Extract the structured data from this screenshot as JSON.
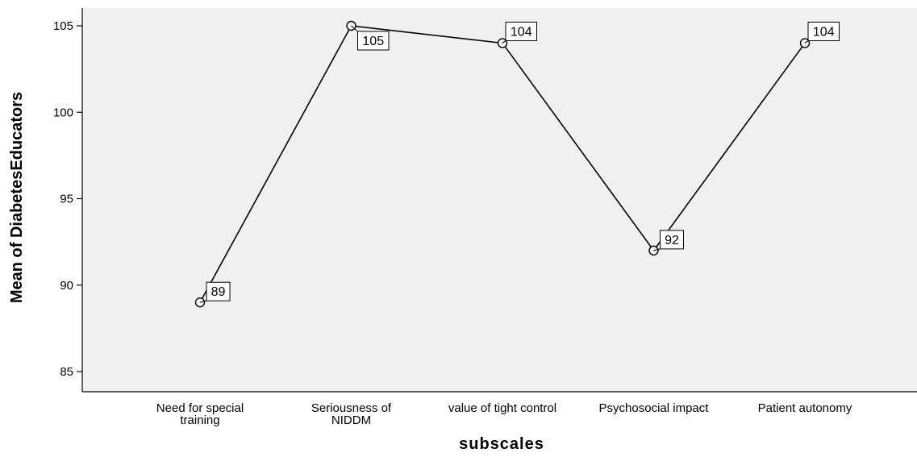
{
  "chart_data": {
    "type": "line",
    "categories": [
      [
        "Need for special",
        "training"
      ],
      [
        "Seriousness of",
        "NIDDM"
      ],
      [
        "value of tight control"
      ],
      [
        "Psychosocial impact"
      ],
      [
        "Patient autonomy"
      ]
    ],
    "values": [
      89,
      105,
      104,
      92,
      104
    ],
    "data_labels": [
      "89",
      "105",
      "104",
      "92",
      "104"
    ],
    "xlabel": "subscales",
    "ylabel": "Mean of DiabetesEducators",
    "ylim": [
      84,
      106
    ],
    "yticks": [
      85,
      90,
      95,
      100,
      105
    ],
    "grid": false,
    "colors": {
      "plot_background": "#f0f0f0",
      "line": "#000000",
      "marker_fill": "#f0f0f0"
    }
  }
}
